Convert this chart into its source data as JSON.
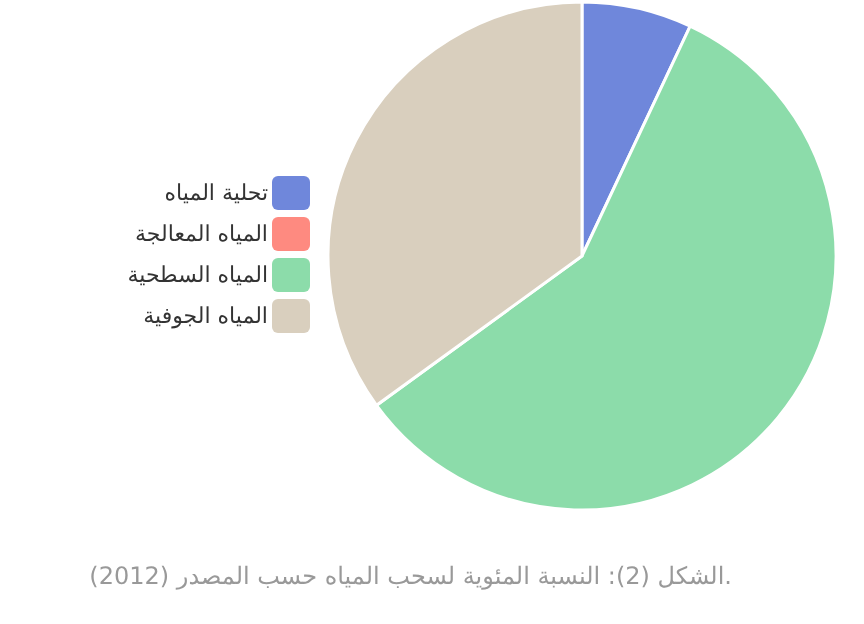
{
  "chart_data": {
    "type": "pie",
    "categories": [
      "تحلية المياه",
      "المياه المعالجة",
      "المياه السطحية",
      "المياه الجوفية"
    ],
    "values": [
      7,
      0,
      58,
      35
    ],
    "colors": [
      "#6f87db",
      "#fe8a80",
      "#8cdcaa",
      "#d9cfbe"
    ],
    "legend": "left",
    "annotations": [
      "الشكل (2): النسبة المئوية لسحب المياه حسب المصدر (2012)."
    ]
  }
}
